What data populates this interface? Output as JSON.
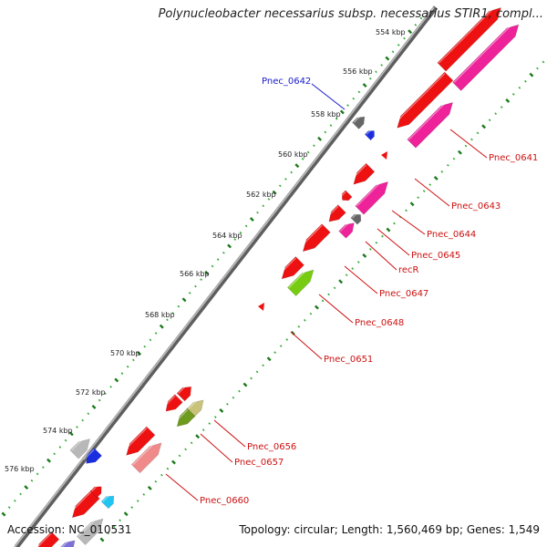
{
  "title": "Polynucleobacter necessarius subsp. necessarius STIR1, compl...",
  "footer": {
    "accession": "Accession: NC_010531",
    "summary": "Topology: circular; Length: 1,560,469 bp; Genes: 1,549"
  },
  "kbp_ticks": [
    "554 kbp",
    "556 kbp",
    "558 kbp",
    "560 kbp",
    "562 kbp",
    "564 kbp",
    "566 kbp",
    "568 kbp",
    "570 kbp",
    "572 kbp",
    "574 kbp",
    "576 kbp"
  ],
  "gene_labels": [
    {
      "text": "Pnec_0642",
      "color": "#1a1acc"
    },
    {
      "text": "Pnec_0641",
      "color": "#cc1111"
    },
    {
      "text": "Pnec_0643",
      "color": "#cc1111"
    },
    {
      "text": "Pnec_0644",
      "color": "#cc1111"
    },
    {
      "text": "Pnec_0645",
      "color": "#cc1111"
    },
    {
      "text": "recR",
      "color": "#cc1111"
    },
    {
      "text": "Pnec_0647",
      "color": "#cc1111"
    },
    {
      "text": "Pnec_0648",
      "color": "#cc1111"
    },
    {
      "text": "Pnec_0651",
      "color": "#cc1111"
    },
    {
      "text": "Pnec_0656",
      "color": "#cc1111"
    },
    {
      "text": "Pnec_0657",
      "color": "#cc1111"
    },
    {
      "text": "Pnec_0660",
      "color": "#cc1111"
    }
  ],
  "colors": {
    "backbone": "#8a8a8a",
    "cds": "#ee1111",
    "cds_magenta": "#ee2299",
    "cds_pink": "#f08a8a",
    "cds_gray": "#b8b8b8",
    "cds_darkgray": "#666666",
    "cds_blue": "#1a2ee0",
    "cds_cyan": "#22c4f0",
    "cds_green": "#77cc11",
    "cds_olive": "#6e9a1e",
    "cds_khaki": "#c8c27a",
    "cds_purple": "#7a70d8",
    "tick_major": "#1a7a1a",
    "tick_minor": "#33aa33"
  }
}
